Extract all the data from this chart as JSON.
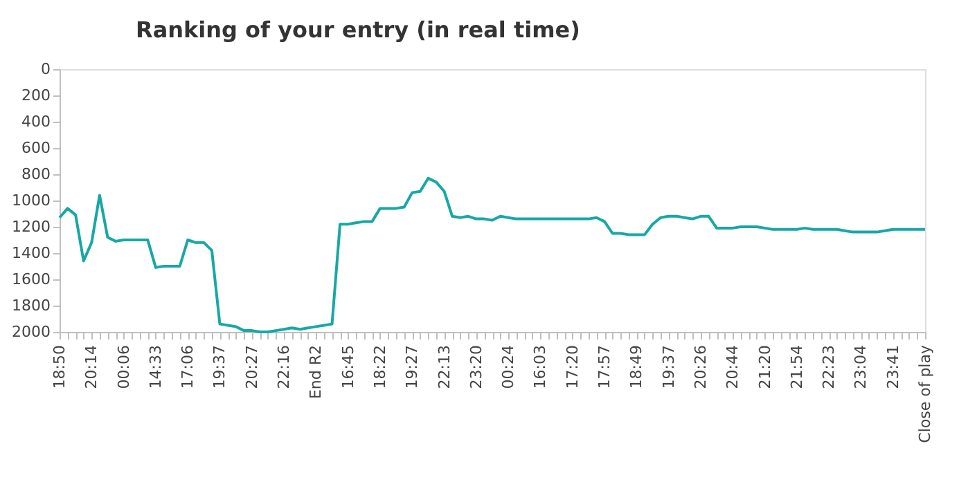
{
  "chart_data": {
    "type": "line",
    "title": "Ranking of your entry (in real time)",
    "categories": [
      "18:50",
      null,
      null,
      null,
      "20:14",
      null,
      null,
      null,
      "00:06",
      null,
      null,
      null,
      "14:33",
      null,
      null,
      null,
      "17:06",
      null,
      null,
      null,
      "19:37",
      null,
      null,
      null,
      "20:27",
      null,
      null,
      null,
      "22:16",
      null,
      null,
      null,
      "End R2",
      null,
      null,
      null,
      "16:45",
      null,
      null,
      null,
      "18:22",
      null,
      null,
      null,
      "19:27",
      null,
      null,
      null,
      "22:13",
      null,
      null,
      null,
      "23:20",
      null,
      null,
      null,
      "00:24",
      null,
      null,
      null,
      "16:03",
      null,
      null,
      null,
      "17:20",
      null,
      null,
      null,
      "17:57",
      null,
      null,
      null,
      "18:49",
      null,
      null,
      null,
      "19:37",
      null,
      null,
      null,
      "20:26",
      null,
      null,
      null,
      "20:44",
      null,
      null,
      null,
      "21:20",
      null,
      null,
      null,
      "21:54",
      null,
      null,
      null,
      "22:23",
      null,
      null,
      null,
      "23:04",
      null,
      null,
      null,
      "23:41",
      null,
      null,
      null,
      "Close of play"
    ],
    "series": [
      {
        "color": "#17a8a6",
        "values": [
          1130,
          1060,
          1110,
          1460,
          1320,
          960,
          1280,
          1310,
          1300,
          1300,
          1300,
          1300,
          1510,
          1500,
          1500,
          1500,
          1300,
          1320,
          1320,
          1380,
          1940,
          1950,
          1960,
          1990,
          1990,
          2000,
          2000,
          1990,
          1980,
          1970,
          1980,
          1970,
          1960,
          1950,
          1940,
          1180,
          1180,
          1170,
          1160,
          1160,
          1060,
          1060,
          1060,
          1050,
          940,
          930,
          830,
          860,
          930,
          1120,
          1130,
          1120,
          1140,
          1140,
          1150,
          1120,
          1130,
          1140,
          1140,
          1140,
          1140,
          1140,
          1140,
          1140,
          1140,
          1140,
          1140,
          1130,
          1160,
          1250,
          1250,
          1260,
          1260,
          1260,
          1180,
          1130,
          1120,
          1120,
          1130,
          1140,
          1120,
          1120,
          1210,
          1210,
          1210,
          1200,
          1200,
          1200,
          1210,
          1220,
          1220,
          1220,
          1220,
          1210,
          1220,
          1220,
          1220,
          1220,
          1230,
          1240,
          1240,
          1240,
          1240,
          1230,
          1220,
          1220,
          1220,
          1220,
          1220
        ]
      }
    ],
    "ylim": [
      2000,
      0
    ],
    "yticks": [
      0,
      200,
      400,
      600,
      800,
      1000,
      1200,
      1400,
      1600,
      1800,
      2000
    ],
    "grid": false,
    "marker": "none",
    "line_style": "solid"
  }
}
